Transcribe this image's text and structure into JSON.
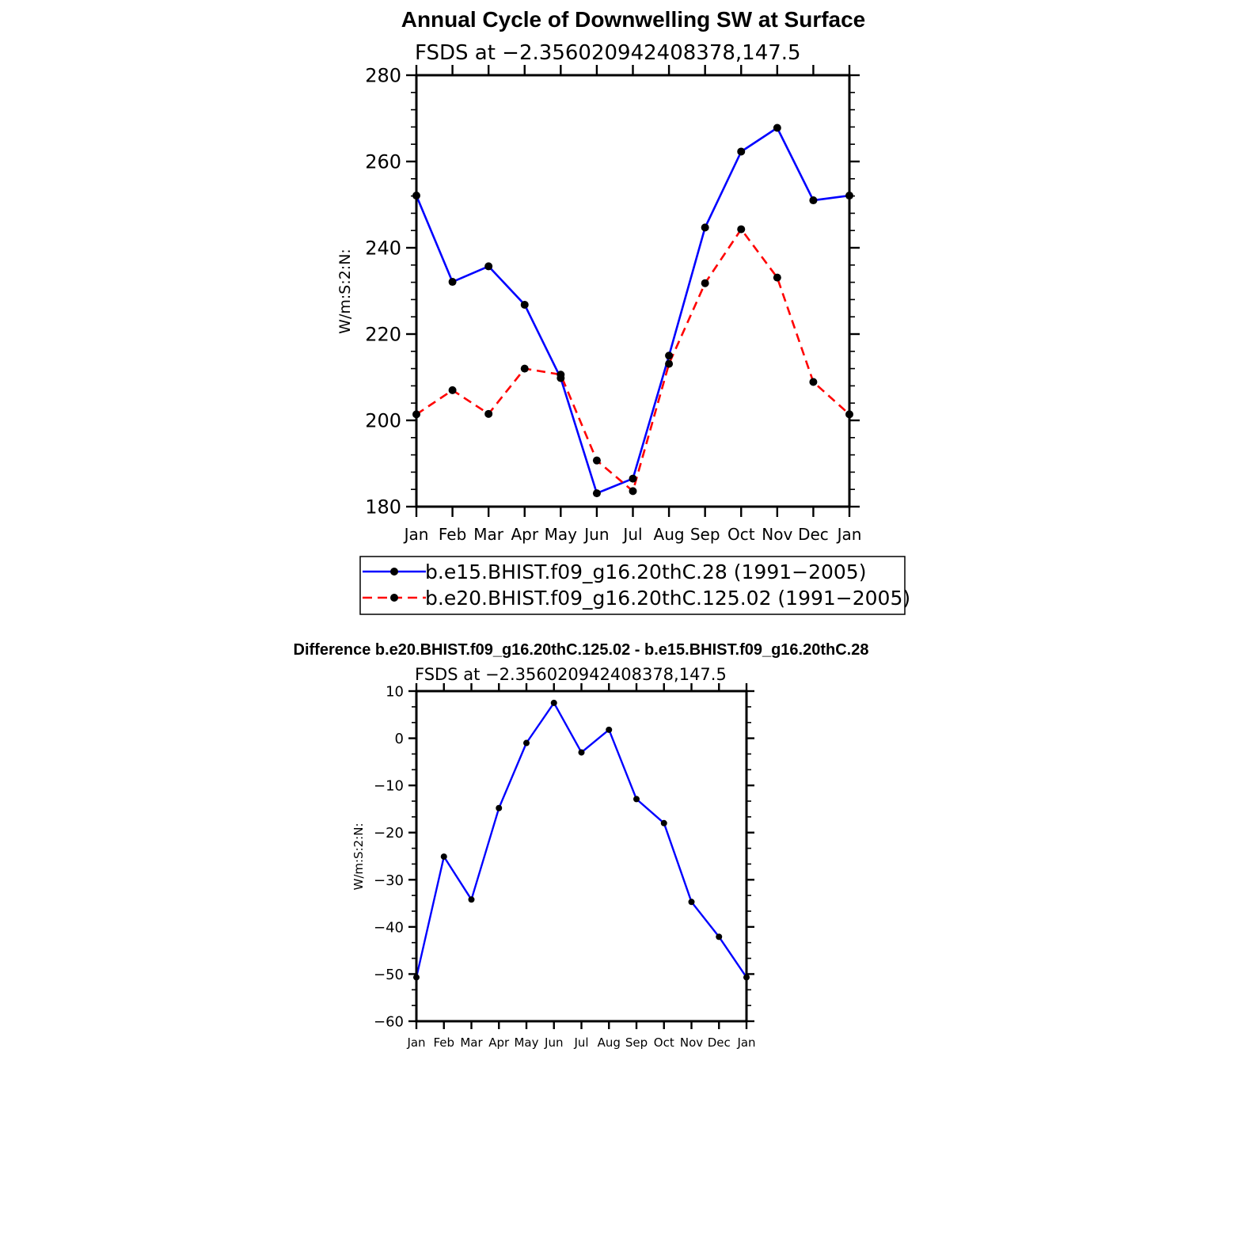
{
  "chart_data": [
    {
      "type": "line",
      "title": "Annual Cycle of Downwelling SW at Surface",
      "subtitle": "FSDS at −2.356020942408378,147.5",
      "xlabel": "",
      "ylabel": "W/m:S:2:N:",
      "categories": [
        "Jan",
        "Feb",
        "Mar",
        "Apr",
        "May",
        "Jun",
        "Jul",
        "Aug",
        "Sep",
        "Oct",
        "Nov",
        "Dec",
        "Jan"
      ],
      "ylim": [
        180,
        280
      ],
      "yticks": [
        "180",
        "200",
        "220",
        "240",
        "260",
        "280"
      ],
      "grid": false,
      "legend_placement": "bottom",
      "series": [
        {
          "name": "b.e15.BHIST.f09_g16.20thC.28 (1991−2005)",
          "color": "#0000ff",
          "dash": "solid",
          "values": [
            252.1,
            232.1,
            235.7,
            226.8,
            209.8,
            183.1,
            186.5,
            215.0,
            244.7,
            262.3,
            267.8,
            251.0,
            252.1
          ]
        },
        {
          "name": "b.e20.BHIST.f09_g16.20thC.125.02 (1991−2005)",
          "color": "#ff0000",
          "dash": "dashed",
          "values": [
            201.4,
            207.0,
            201.5,
            212.0,
            210.6,
            190.7,
            183.6,
            213.1,
            231.8,
            244.3,
            233.1,
            208.9,
            201.4
          ]
        }
      ]
    },
    {
      "type": "line",
      "title": "Difference b.e20.BHIST.f09_g16.20thC.125.02 - b.e15.BHIST.f09_g16.20thC.28",
      "subtitle": "FSDS at −2.356020942408378,147.5",
      "xlabel": "",
      "ylabel": "W/m:S:2:N:",
      "categories": [
        "Jan",
        "Feb",
        "Mar",
        "Apr",
        "May",
        "Jun",
        "Jul",
        "Aug",
        "Sep",
        "Oct",
        "Nov",
        "Dec",
        "Jan"
      ],
      "ylim": [
        -60,
        10
      ],
      "yticks": [
        "−60",
        "−50",
        "−40",
        "−30",
        "−20",
        "−10",
        "0",
        "10"
      ],
      "grid": false,
      "series": [
        {
          "color": "#0000ff",
          "dash": "solid",
          "values": [
            -50.7,
            -25.1,
            -34.2,
            -14.8,
            -1.0,
            7.5,
            -3.0,
            1.8,
            -12.9,
            -18.0,
            -34.7,
            -42.1,
            -50.7
          ]
        }
      ]
    }
  ]
}
